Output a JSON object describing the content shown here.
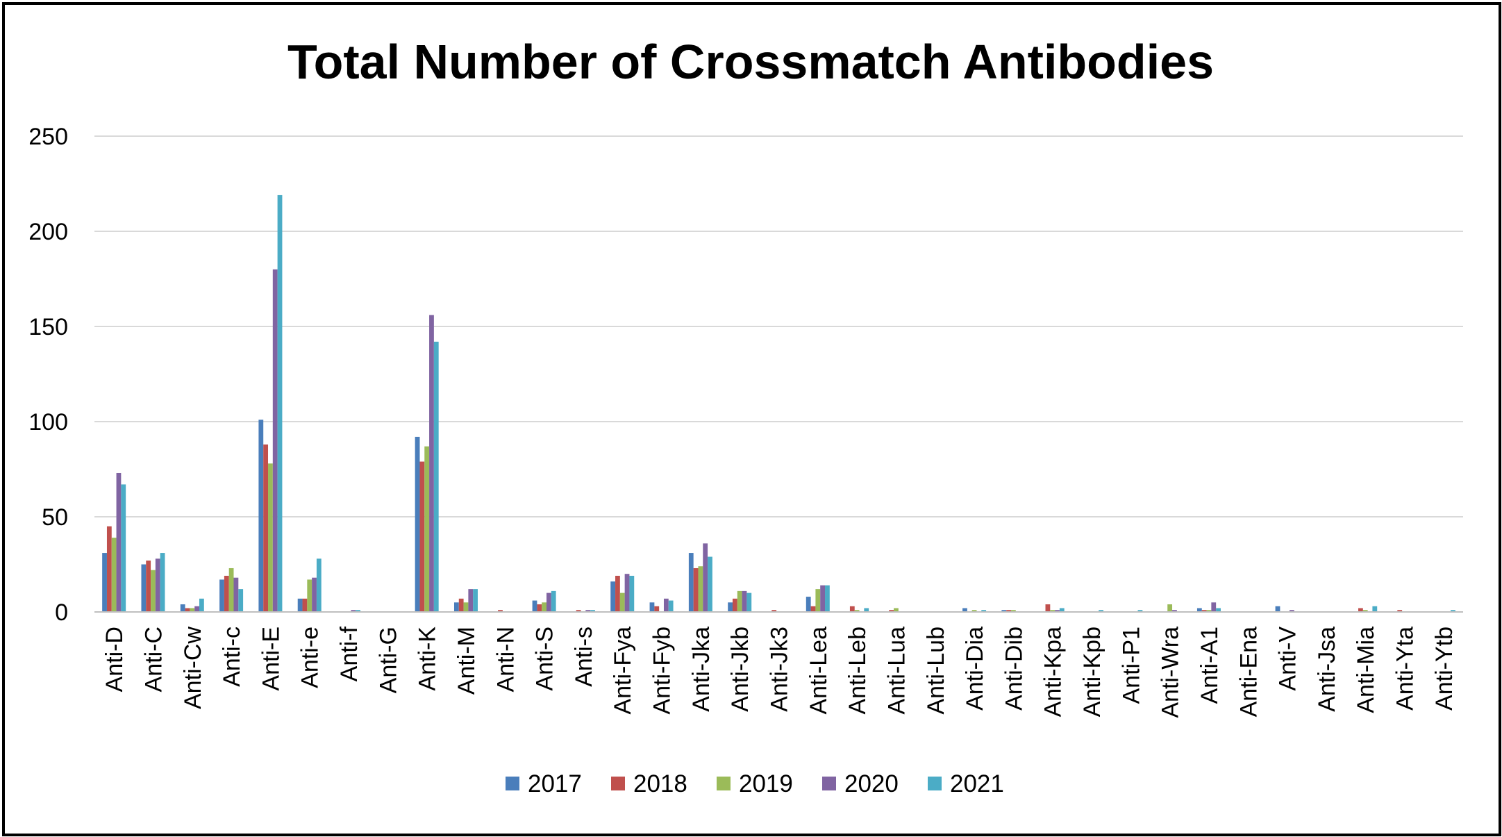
{
  "chart_data": {
    "type": "bar",
    "title": "Total Number of Crossmatch Antibodies",
    "xlabel": "",
    "ylabel": "",
    "ylim": [
      0,
      250
    ],
    "yticks": [
      "0",
      "50",
      "100",
      "150",
      "200",
      "250"
    ],
    "grid": true,
    "legend_position": "bottom",
    "categories": [
      "Anti-D",
      "Anti-C",
      "Anti-Cw",
      "Anti-c",
      "Anti-E",
      "Anti-e",
      "Anti-f",
      "Anti-G",
      "Anti-K",
      "Anti-M",
      "Anti-N",
      "Anti-S",
      "Anti-s",
      "Anti-Fya",
      "Anti-Fyb",
      "Anti-Jka",
      "Anti-Jkb",
      "Anti-Jk3",
      "Anti-Lea",
      "Anti-Leb",
      "Anti-Lua",
      "Anti-Lub",
      "Anti-Dia",
      "Anti-Dib",
      "Anti-Kpa",
      "Anti-Kpb",
      "Anti-P1",
      "Anti-Wra",
      "Anti-A1",
      "Anti-Ena",
      "Anti-V",
      "Anti-Jsa",
      "Anti-Mia",
      "Anti-Yta",
      "Anti-Ytb"
    ],
    "series": [
      {
        "name": "2017",
        "color": "#4A7EBB",
        "values": [
          31,
          25,
          4,
          17,
          101,
          7,
          0,
          0,
          92,
          5,
          0,
          6,
          0,
          16,
          5,
          31,
          5,
          0,
          8,
          0,
          0,
          0,
          2,
          1,
          0,
          0,
          0,
          0,
          2,
          0,
          3,
          0,
          0,
          0,
          0
        ]
      },
      {
        "name": "2018",
        "color": "#C0504D",
        "values": [
          45,
          27,
          2,
          19,
          88,
          7,
          0,
          0,
          79,
          7,
          1,
          4,
          1,
          19,
          3,
          23,
          7,
          1,
          3,
          3,
          1,
          0,
          0,
          1,
          4,
          0,
          0,
          0,
          1,
          0,
          0,
          0,
          2,
          1,
          0
        ]
      },
      {
        "name": "2019",
        "color": "#9BBB59",
        "values": [
          39,
          22,
          2,
          23,
          78,
          17,
          0,
          0,
          87,
          5,
          0,
          5,
          0,
          10,
          0,
          24,
          11,
          0,
          12,
          1,
          2,
          0,
          1,
          1,
          1,
          0,
          0,
          4,
          1,
          0,
          0,
          0,
          1,
          0,
          0
        ]
      },
      {
        "name": "2020",
        "color": "#8064A2",
        "values": [
          73,
          28,
          3,
          18,
          180,
          18,
          1,
          0,
          156,
          12,
          0,
          10,
          1,
          20,
          7,
          36,
          11,
          0,
          14,
          0,
          0,
          0,
          0,
          0,
          1,
          0,
          0,
          1,
          5,
          0,
          1,
          0,
          0,
          0,
          0
        ]
      },
      {
        "name": "2021",
        "color": "#4BACC6",
        "values": [
          67,
          31,
          7,
          12,
          219,
          28,
          1,
          0,
          142,
          12,
          0,
          11,
          1,
          19,
          6,
          29,
          10,
          0,
          14,
          2,
          0,
          0,
          1,
          0,
          2,
          1,
          1,
          0,
          2,
          0,
          0,
          0,
          3,
          0,
          1
        ]
      }
    ]
  }
}
